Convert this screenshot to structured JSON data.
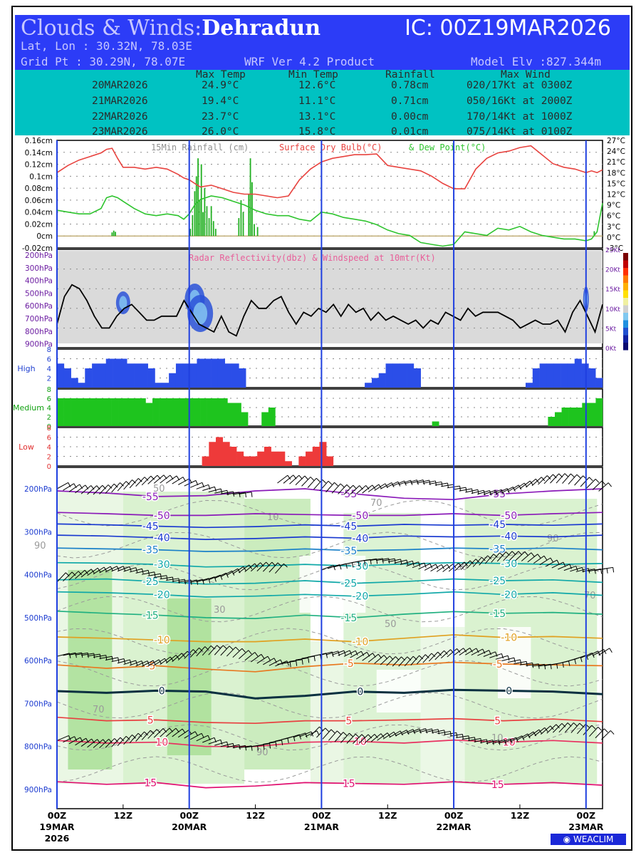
{
  "header": {
    "title_prefix": "Clouds & Winds:",
    "city": "Dehradun",
    "ic": "IC: 00Z19MAR2026",
    "latlon": "Lat, Lon : 30.32N, 78.03E",
    "gridpt": "Grid Pt  : 30.29N, 78.07E",
    "product": "WRF Ver 4.2 Product",
    "elev": "Model Elv :827.344m"
  },
  "summary": {
    "headers": [
      "Max Temp",
      "Min Temp",
      "Rainfall",
      "Max Wind"
    ],
    "rows": [
      [
        "20MAR2026",
        "24.9°C",
        "12.6°C",
        "0.78cm",
        "020/17Kt at 0300Z"
      ],
      [
        "21MAR2026",
        "19.4°C",
        "11.1°C",
        "0.71cm",
        "050/16Kt at 2000Z"
      ],
      [
        "22MAR2026",
        "23.7°C",
        "13.1°C",
        "0.00cm",
        "170/14Kt at 1000Z"
      ],
      [
        "23MAR2026",
        "26.0°C",
        "15.8°C",
        "0.01cm",
        "075/14Kt at 0100Z"
      ]
    ]
  },
  "colors": {
    "header": "#2c3cf7",
    "summary": "#00c2c2",
    "temp": "#e8433f",
    "dew": "#2ec42e",
    "rain": "#22b022",
    "day_line": "#1f3fe0",
    "high_cloud": "#2b4ee8",
    "mid_cloud": "#1ec41e",
    "low_cloud": "#ee3a3a"
  },
  "chart_data": [
    {
      "type": "line",
      "panel": "rain-temp",
      "title_parts": [
        "15Min Rainfall (cm)",
        "Surface Dry Bulb(°C)",
        "& Dew Point(°C)"
      ],
      "y_left_ticks": [
        "0.16cm",
        "0.14cm",
        "0.12cm",
        "0.1cm",
        "0.08cm",
        "0.06cm",
        "0.04cm",
        "0.02cm",
        "0cm",
        "-0.02cm"
      ],
      "y_right_ticks": [
        "27°C",
        "24°C",
        "21°C",
        "18°C",
        "15°C",
        "12°C",
        "9°C",
        "6°C",
        "3°C",
        "0°C",
        "-3°C"
      ],
      "xlim_hours": [
        0,
        99
      ],
      "x_hours": [
        0,
        2,
        4,
        6,
        8,
        9,
        10,
        11,
        12,
        14,
        16,
        18,
        20,
        22,
        23,
        24,
        25,
        26,
        28,
        30,
        32,
        34,
        36,
        38,
        40,
        42,
        44,
        46,
        48,
        50,
        52,
        54,
        56,
        58,
        60,
        62,
        64,
        66,
        68,
        70,
        72,
        74,
        76,
        78,
        80,
        82,
        84,
        86,
        88,
        90,
        92,
        94,
        96,
        97,
        98,
        99
      ],
      "series": [
        {
          "name": "Surface Dry Bulb(°C)",
          "values": [
            18.0,
            20.0,
            21.5,
            22.5,
            23.5,
            24.5,
            24.8,
            22.0,
            19.5,
            19.5,
            19.0,
            19.5,
            19.0,
            17.5,
            16.5,
            16.0,
            15.0,
            14.0,
            14.5,
            13.5,
            12.5,
            12.0,
            12.0,
            11.5,
            11.0,
            11.5,
            16.0,
            19.0,
            21.0,
            22.0,
            22.5,
            23.0,
            23.0,
            23.2,
            20.0,
            19.5,
            19.0,
            18.5,
            17.0,
            15.0,
            13.5,
            13.5,
            19.0,
            22.0,
            23.5,
            24.0,
            25.0,
            25.5,
            23.0,
            20.5,
            19.5,
            19.0,
            18.0,
            18.5,
            18.0,
            18.8
          ]
        },
        {
          "name": "Dew Point(°C)",
          "values": [
            7.5,
            7.0,
            6.5,
            6.5,
            8.0,
            11.0,
            11.5,
            11.0,
            10.0,
            8.0,
            6.5,
            6.0,
            6.5,
            6.0,
            5.0,
            6.5,
            9.0,
            10.5,
            11.5,
            11.0,
            10.0,
            9.0,
            7.5,
            6.5,
            6.0,
            6.0,
            5.0,
            4.5,
            7.0,
            6.5,
            5.5,
            5.0,
            4.5,
            3.5,
            2.0,
            1.0,
            0.5,
            -1.5,
            -2.0,
            -2.5,
            -2.0,
            1.5,
            1.0,
            0.5,
            2.5,
            2.0,
            3.0,
            1.5,
            0.5,
            0.0,
            -0.5,
            -0.5,
            -1.0,
            -0.5,
            1.5,
            9.5
          ]
        }
      ],
      "rain_bars": [
        {
          "x": 10.0,
          "v": 0.006
        },
        {
          "x": 10.3,
          "v": 0.009
        },
        {
          "x": 10.6,
          "v": 0.007
        },
        {
          "x": 24.2,
          "v": 0.012
        },
        {
          "x": 24.6,
          "v": 0.035
        },
        {
          "x": 25.0,
          "v": 0.075
        },
        {
          "x": 25.3,
          "v": 0.1
        },
        {
          "x": 25.6,
          "v": 0.13
        },
        {
          "x": 25.9,
          "v": 0.06
        },
        {
          "x": 26.2,
          "v": 0.12
        },
        {
          "x": 26.5,
          "v": 0.04
        },
        {
          "x": 26.8,
          "v": 0.08
        },
        {
          "x": 27.2,
          "v": 0.05
        },
        {
          "x": 27.6,
          "v": 0.03
        },
        {
          "x": 28.0,
          "v": 0.05
        },
        {
          "x": 28.4,
          "v": 0.025
        },
        {
          "x": 28.8,
          "v": 0.012
        },
        {
          "x": 33.0,
          "v": 0.03
        },
        {
          "x": 33.4,
          "v": 0.06
        },
        {
          "x": 33.8,
          "v": 0.04
        },
        {
          "x": 34.8,
          "v": 0.07
        },
        {
          "x": 35.1,
          "v": 0.13
        },
        {
          "x": 35.4,
          "v": 0.09
        },
        {
          "x": 35.8,
          "v": 0.02
        },
        {
          "x": 36.4,
          "v": 0.015
        },
        {
          "x": 97.5,
          "v": 0.008
        }
      ]
    },
    {
      "type": "area",
      "panel": "radar",
      "title": "Radar Reflectivity(dbz) & Windspeed at 10mtr(Kt)",
      "y_ticks": [
        "200hPa",
        "300hPa",
        "400hPa",
        "500hPa",
        "600hPa",
        "700hPa",
        "800hPa",
        "900hPa"
      ],
      "y_right_ticks": [
        "25Kt",
        "20Kt",
        "15Kt",
        "10Kt",
        "5Kt",
        "0Kt"
      ],
      "windspeed_kt": [
        6,
        13,
        16,
        15,
        12,
        8,
        5,
        5,
        8,
        10,
        11,
        9,
        7,
        7,
        8,
        8,
        8,
        12,
        9,
        6,
        5,
        4,
        8,
        4,
        3,
        8,
        12,
        10,
        10,
        12,
        13,
        9,
        6,
        9,
        8,
        10,
        9,
        11,
        8,
        11,
        9,
        10,
        7,
        9,
        7,
        8,
        7,
        6,
        7,
        5,
        7,
        6,
        9,
        8,
        7,
        10,
        8,
        9,
        9,
        9,
        8,
        7,
        5,
        6,
        7,
        6,
        6,
        7,
        4,
        9,
        12,
        8,
        4,
        11
      ]
    },
    {
      "type": "bar",
      "panel": "high-cloud",
      "label": "High",
      "y_ticks": [
        "8",
        "6",
        "4",
        "2"
      ],
      "cover": [
        5,
        4,
        2,
        1,
        4,
        5,
        5,
        6,
        6,
        6,
        5,
        5,
        5,
        4,
        1,
        1,
        3,
        5,
        5,
        5,
        6,
        6,
        6,
        6,
        5,
        5,
        4,
        0,
        0,
        0,
        0,
        0,
        0,
        0,
        0,
        0,
        0,
        0,
        0,
        0,
        0,
        0,
        0,
        0,
        1,
        2,
        3,
        5,
        5,
        5,
        5,
        4,
        0,
        0,
        0,
        0,
        0,
        0,
        0,
        0,
        0,
        0,
        0,
        0,
        0,
        0,
        0,
        1,
        4,
        5,
        5,
        5,
        5,
        5,
        6,
        5,
        4,
        2
      ]
    },
    {
      "type": "bar",
      "panel": "medium-cloud",
      "label": "Medium",
      "y_ticks": [
        "8",
        "6",
        "4",
        "2",
        "0"
      ],
      "cover": [
        6,
        6,
        6,
        6,
        6,
        6,
        6,
        6,
        6,
        6,
        6,
        6,
        6,
        5,
        6,
        6,
        6,
        6,
        6,
        6,
        6,
        6,
        6,
        6,
        6,
        5,
        5,
        3,
        0,
        0,
        3,
        4,
        0,
        0,
        0,
        0,
        0,
        0,
        0,
        0,
        0,
        0,
        0,
        0,
        0,
        0,
        0,
        0,
        0,
        0,
        0,
        0,
        0,
        0,
        0,
        1,
        0,
        0,
        0,
        0,
        0,
        0,
        0,
        0,
        0,
        0,
        0,
        0,
        0,
        0,
        0,
        0,
        2,
        3,
        4,
        4,
        4,
        5,
        5,
        6
      ]
    },
    {
      "type": "bar",
      "panel": "low-cloud",
      "label": "Low",
      "y_ticks": [
        "8",
        "6",
        "4",
        "2",
        "0"
      ],
      "cover": [
        0,
        0,
        0,
        0,
        0,
        0,
        0,
        0,
        0,
        0,
        0,
        0,
        0,
        0,
        0,
        0,
        0,
        0,
        0,
        0,
        0,
        2,
        5,
        6,
        5,
        4,
        3,
        2,
        2,
        3,
        4,
        3,
        3,
        1,
        0,
        2,
        3,
        4,
        5,
        2,
        0,
        0,
        0,
        0,
        0,
        0,
        0,
        0,
        0,
        0,
        0,
        0,
        0,
        0,
        0,
        0,
        0,
        0,
        0,
        0,
        0,
        0,
        0,
        0,
        0,
        0,
        0,
        0,
        0,
        0,
        0,
        0,
        0,
        0,
        0,
        0,
        0,
        0,
        0
      ]
    },
    {
      "type": "line",
      "panel": "cross-section",
      "y_ticks": [
        "200hPa",
        "300hPa",
        "400hPa",
        "500hPa",
        "600hPa",
        "700hPa",
        "800hPa",
        "900hPa"
      ],
      "x_ticks": [
        {
          "h": 0,
          "l1": "00Z",
          "l2": "19MAR",
          "l3": "2026"
        },
        {
          "h": 12,
          "l1": "12Z",
          "l2": "",
          "l3": ""
        },
        {
          "h": 24,
          "l1": "00Z",
          "l2": "20MAR",
          "l3": ""
        },
        {
          "h": 36,
          "l1": "12Z",
          "l2": "",
          "l3": ""
        },
        {
          "h": 48,
          "l1": "00Z",
          "l2": "21MAR",
          "l3": ""
        },
        {
          "h": 60,
          "l1": "12Z",
          "l2": "",
          "l3": ""
        },
        {
          "h": 72,
          "l1": "00Z",
          "l2": "22MAR",
          "l3": ""
        },
        {
          "h": 84,
          "l1": "12Z",
          "l2": "",
          "l3": ""
        },
        {
          "h": 96,
          "l1": "00Z",
          "l2": "23MAR",
          "l3": ""
        }
      ],
      "isotherms": [
        {
          "t": -55,
          "label": "-55",
          "p": [
            205,
            210,
            218,
            216,
            205,
            200,
            212,
            222,
            225,
            212,
            205,
            200
          ]
        },
        {
          "t": -50,
          "label": "-50",
          "p": [
            255,
            258,
            262,
            262,
            258,
            260,
            262,
            262,
            258,
            262,
            258,
            255
          ]
        },
        {
          "t": -45,
          "label": "-45",
          "p": [
            282,
            284,
            287,
            290,
            288,
            284,
            287,
            283,
            285,
            283,
            285,
            282
          ]
        },
        {
          "t": -40,
          "label": "-40",
          "p": [
            308,
            310,
            314,
            318,
            316,
            312,
            315,
            310,
            312,
            310,
            312,
            308
          ]
        },
        {
          "t": -35,
          "label": "-35",
          "p": [
            338,
            340,
            342,
            346,
            345,
            340,
            344,
            342,
            338,
            340,
            338,
            342
          ]
        },
        {
          "t": -30,
          "label": "-30",
          "p": [
            372,
            373,
            376,
            382,
            380,
            376,
            380,
            375,
            372,
            374,
            376,
            374
          ]
        },
        {
          "t": -25,
          "label": "-25",
          "p": [
            412,
            410,
            416,
            422,
            420,
            414,
            420,
            416,
            410,
            414,
            412,
            418
          ]
        },
        {
          "t": -20,
          "label": "-20",
          "p": [
            440,
            442,
            446,
            452,
            450,
            446,
            450,
            446,
            440,
            446,
            442,
            448
          ]
        },
        {
          "t": -15,
          "label": "-15",
          "p": [
            485,
            490,
            494,
            500,
            502,
            494,
            500,
            492,
            486,
            490,
            488,
            492
          ]
        },
        {
          "t": -10,
          "label": "-10",
          "p": [
            545,
            548,
            552,
            556,
            556,
            550,
            556,
            548,
            540,
            546,
            544,
            548
          ]
        },
        {
          "t": -5,
          "label": "-5",
          "p": [
            610,
            618,
            612,
            620,
            626,
            614,
            606,
            610,
            604,
            608,
            610,
            612
          ]
        },
        {
          "t": 0,
          "label": "0",
          "p": [
            671,
            675,
            670,
            672,
            688,
            682,
            672,
            675,
            668,
            670,
            672,
            678
          ]
        },
        {
          "t": 5,
          "label": "5",
          "p": [
            732,
            740,
            738,
            744,
            746,
            740,
            740,
            738,
            735,
            740,
            736,
            742
          ]
        },
        {
          "t": 10,
          "label": "10",
          "p": [
            786,
            792,
            790,
            800,
            800,
            790,
            788,
            792,
            785,
            790,
            786,
            792
          ]
        },
        {
          "t": 15,
          "label": "15",
          "p": [
            882,
            888,
            884,
            896,
            892,
            884,
            886,
            888,
            882,
            888,
            884,
            890
          ]
        }
      ],
      "rh_labels": [
        "90",
        "70",
        "50",
        "30",
        "10"
      ]
    }
  ],
  "logo": "WEACLIM"
}
